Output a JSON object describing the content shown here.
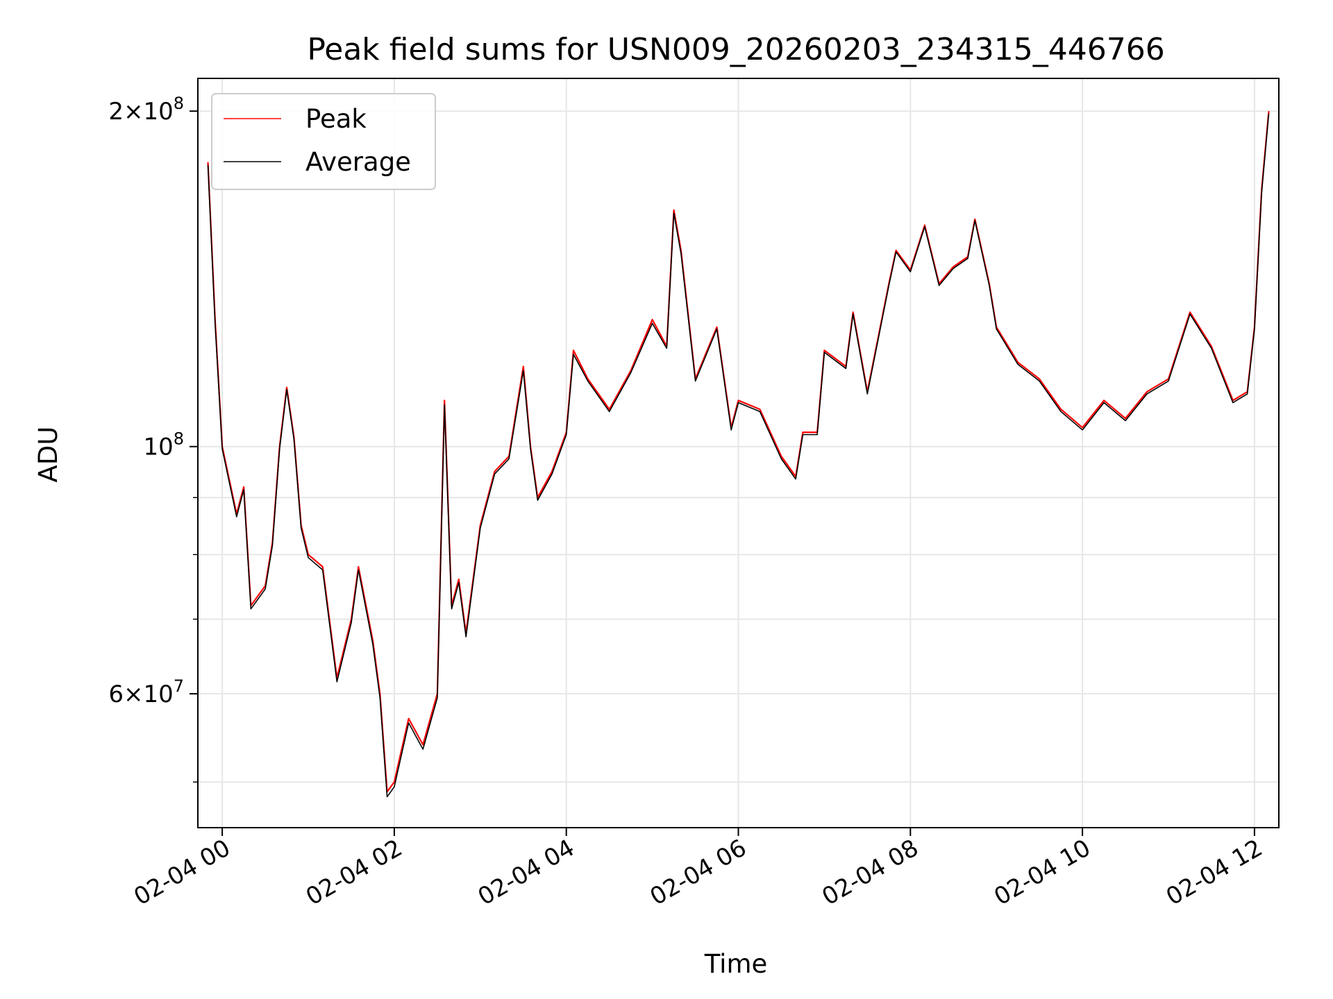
{
  "chart_data": {
    "type": "line",
    "title": "Peak field sums for USN009_20260203_234315_446766",
    "xlabel": "Time",
    "ylabel": "ADU",
    "y_scale": "log",
    "ylim": [
      45500000,
      214000000
    ],
    "xlim": [
      "02-03 23:43",
      "02-04 12:17"
    ],
    "grid": true,
    "legend_position": "upper-left",
    "x_ticks": [
      {
        "value": "02-04 00",
        "label": "02-04 00"
      },
      {
        "value": "02-04 02",
        "label": "02-04 02"
      },
      {
        "value": "02-04 04",
        "label": "02-04 04"
      },
      {
        "value": "02-04 06",
        "label": "02-04 06"
      },
      {
        "value": "02-04 08",
        "label": "02-04 08"
      },
      {
        "value": "02-04 10",
        "label": "02-04 10"
      },
      {
        "value": "02-04 12",
        "label": "02-04 12"
      }
    ],
    "y_major_ticks": [
      {
        "value": 60000000,
        "mantissa": "6",
        "exponent": "7"
      },
      {
        "value": 100000000,
        "mantissa": "",
        "exponent": "8"
      },
      {
        "value": 200000000,
        "mantissa": "2",
        "exponent": "8"
      }
    ],
    "y_minor_ticks": [
      50000000,
      70000000,
      80000000,
      90000000
    ],
    "x_times": [
      "02-03 23:50",
      "02-03 23:55",
      "02-04 00:00",
      "02-04 00:10",
      "02-04 00:15",
      "02-04 00:20",
      "02-04 00:30",
      "02-04 00:35",
      "02-04 00:40",
      "02-04 00:45",
      "02-04 00:50",
      "02-04 00:55",
      "02-04 01:00",
      "02-04 01:10",
      "02-04 01:20",
      "02-04 01:30",
      "02-04 01:35",
      "02-04 01:45",
      "02-04 01:50",
      "02-04 01:55",
      "02-04 02:00",
      "02-04 02:10",
      "02-04 02:20",
      "02-04 02:30",
      "02-04 02:35",
      "02-04 02:40",
      "02-04 02:45",
      "02-04 02:50",
      "02-04 03:00",
      "02-04 03:10",
      "02-04 03:20",
      "02-04 03:30",
      "02-04 03:35",
      "02-04 03:40",
      "02-04 03:50",
      "02-04 04:00",
      "02-04 04:05",
      "02-04 04:15",
      "02-04 04:30",
      "02-04 04:45",
      "02-04 05:00",
      "02-04 05:10",
      "02-04 05:15",
      "02-04 05:20",
      "02-04 05:30",
      "02-04 05:45",
      "02-04 05:55",
      "02-04 06:00",
      "02-04 06:15",
      "02-04 06:30",
      "02-04 06:40",
      "02-04 06:45",
      "02-04 06:55",
      "02-04 07:00",
      "02-04 07:15",
      "02-04 07:20",
      "02-04 07:30",
      "02-04 07:45",
      "02-04 07:50",
      "02-04 08:00",
      "02-04 08:10",
      "02-04 08:20",
      "02-04 08:30",
      "02-04 08:40",
      "02-04 08:45",
      "02-04 08:55",
      "02-04 09:00",
      "02-04 09:15",
      "02-04 09:30",
      "02-04 09:45",
      "02-04 10:00",
      "02-04 10:15",
      "02-04 10:30",
      "02-04 10:45",
      "02-04 11:00",
      "02-04 11:15",
      "02-04 11:30",
      "02-04 11:45",
      "02-04 11:55",
      "02-04 12:00",
      "02-04 12:05",
      "02-04 12:10"
    ],
    "series": [
      {
        "name": "Peak",
        "color": "#ff0000",
        "values": [
          180000000,
          130000000,
          100000000,
          87000000,
          92000000,
          72000000,
          75000000,
          82000000,
          100000000,
          113000000,
          102000000,
          85000000,
          80000000,
          78000000,
          62000000,
          70000000,
          78000000,
          67000000,
          60000000,
          49000000,
          50000000,
          57000000,
          54000000,
          60000000,
          110000000,
          72000000,
          76000000,
          68000000,
          85000000,
          95000000,
          98000000,
          118000000,
          100000000,
          90000000,
          95000000,
          103000000,
          122000000,
          115000000,
          108000000,
          117000000,
          130000000,
          123000000,
          163000000,
          150000000,
          115000000,
          128000000,
          104000000,
          110000000,
          108000000,
          98000000,
          94000000,
          103000000,
          103000000,
          122000000,
          118000000,
          132000000,
          112000000,
          140000000,
          150000000,
          144000000,
          158000000,
          140000000,
          145000000,
          148000000,
          160000000,
          140000000,
          128000000,
          119000000,
          115000000,
          108000000,
          104000000,
          110000000,
          106000000,
          112000000,
          115000000,
          132000000,
          123000000,
          110000000,
          112000000,
          128000000,
          170000000,
          200000000
        ]
      },
      {
        "name": "Average",
        "color": "#000000",
        "values": [
          179000000,
          129000000,
          99500000,
          86500000,
          91500000,
          71500000,
          74500000,
          81500000,
          99500000,
          112500000,
          101500000,
          84500000,
          79500000,
          77500000,
          61500000,
          69500000,
          77500000,
          66500000,
          59500000,
          48500000,
          49500000,
          56500000,
          53500000,
          59500000,
          109000000,
          71500000,
          75500000,
          67500000,
          84500000,
          94500000,
          97500000,
          117000000,
          99500000,
          89500000,
          94500000,
          102500000,
          121000000,
          114500000,
          107500000,
          116500000,
          129000000,
          122500000,
          162000000,
          149000000,
          114500000,
          127500000,
          103500000,
          109500000,
          107500000,
          97500000,
          93500000,
          102500000,
          102500000,
          121500000,
          117500000,
          131500000,
          111500000,
          139500000,
          149500000,
          143500000,
          157500000,
          139500000,
          144500000,
          147500000,
          159500000,
          139500000,
          127500000,
          118500000,
          114500000,
          107500000,
          103500000,
          109500000,
          105500000,
          111500000,
          114500000,
          131500000,
          122500000,
          109500000,
          111500000,
          127500000,
          169000000,
          199000000
        ]
      }
    ]
  }
}
